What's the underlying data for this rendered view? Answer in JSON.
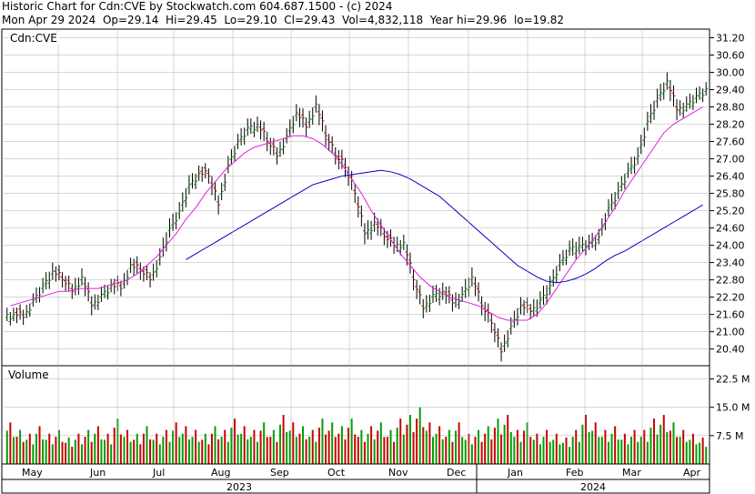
{
  "header": {
    "line1": "Historic Chart for Cdn:CVE by Stockwatch.com 604.687.1500 - (c) 2024",
    "line2": "Mon Apr 29 2024  Op=29.14  Hi=29.45  Lo=29.10  Cl=29.43  Vol=4,832,118  Year hi=29.96  lo=19.82"
  },
  "price_panel": {
    "label": "Cdn:CVE"
  },
  "volume_panel": {
    "label": "Volume"
  },
  "colors": {
    "up": "#00a000",
    "down": "#cc0000",
    "ma_short": "#e020e0",
    "ma_long": "#0000c0",
    "grid": "#b0b0b0",
    "axis": "#000000",
    "year_band": "#000000"
  },
  "chart_data": {
    "type": "line",
    "title": "Historic Chart for Cdn:CVE by Stockwatch.com 604.687.1500 - (c) 2024",
    "price_axis": {
      "ylim": [
        19.82,
        31.5
      ],
      "ticks": [
        20.4,
        21.0,
        21.6,
        22.2,
        22.8,
        23.4,
        24.0,
        24.6,
        25.2,
        25.8,
        26.4,
        27.0,
        27.6,
        28.2,
        28.8,
        29.4,
        30.0,
        30.6,
        31.2
      ],
      "tick_labels": [
        "20.40",
        "21.00",
        "21.60",
        "22.20",
        "22.80",
        "23.40",
        "24.00",
        "24.60",
        "25.20",
        "25.80",
        "26.40",
        "27.00",
        "27.60",
        "28.20",
        "28.80",
        "29.40",
        "30.00",
        "30.60",
        "31.20"
      ]
    },
    "volume_axis": {
      "ylim": [
        0,
        26
      ],
      "ticks": [
        7.5,
        15.0,
        22.5
      ],
      "tick_labels": [
        "7.5 M",
        "15.0 M",
        "22.5 M"
      ]
    },
    "x_axis": {
      "months": [
        "May",
        "Jun",
        "Jul",
        "Aug",
        "Sep",
        "Oct",
        "Nov",
        "Dec",
        "Jan",
        "Feb",
        "Mar",
        "Apr"
      ],
      "years": [
        "2023",
        "2024"
      ]
    },
    "close_weekly": [
      21.6,
      21.5,
      22.1,
      22.6,
      23.1,
      22.8,
      22.4,
      22.9,
      21.9,
      22.3,
      22.6,
      22.5,
      23.3,
      23.1,
      22.8,
      23.6,
      24.6,
      25.2,
      26.1,
      26.5,
      26.4,
      25.4,
      26.8,
      27.6,
      28.1,
      28.2,
      27.6,
      27.1,
      27.8,
      28.6,
      28.1,
      28.9,
      27.8,
      27.1,
      26.7,
      25.8,
      24.4,
      24.8,
      24.3,
      24.0,
      24.1,
      22.8,
      21.8,
      22.3,
      22.4,
      22.0,
      22.3,
      22.9,
      21.9,
      21.3,
      20.3,
      21.2,
      21.9,
      21.7,
      22.1,
      22.6,
      23.4,
      23.9,
      24.0,
      24.1,
      24.3,
      25.3,
      25.9,
      26.6,
      27.1,
      28.3,
      29.1,
      29.7,
      28.7,
      28.9,
      29.2,
      29.43
    ],
    "weekly_range": [
      0.7,
      0.8,
      0.7,
      0.8,
      0.9,
      0.8,
      0.8,
      0.9,
      1.0,
      0.8,
      0.7,
      0.8,
      0.8,
      0.9,
      0.8,
      0.9,
      1.0,
      0.9,
      1.0,
      0.8,
      0.8,
      1.0,
      0.9,
      0.8,
      0.9,
      0.8,
      1.0,
      0.9,
      0.8,
      0.9,
      1.0,
      0.9,
      1.1,
      0.9,
      1.0,
      1.0,
      1.1,
      1.0,
      0.9,
      0.9,
      0.8,
      1.1,
      1.0,
      0.9,
      0.9,
      0.9,
      0.8,
      1.0,
      1.0,
      1.0,
      1.0,
      0.9,
      0.9,
      0.8,
      0.9,
      1.0,
      0.9,
      0.8,
      0.9,
      0.8,
      0.8,
      0.9,
      0.9,
      0.8,
      0.9,
      1.0,
      1.0,
      0.9,
      1.1,
      0.8,
      0.8,
      0.7
    ],
    "ma_short": [
      21.9,
      22.0,
      22.1,
      22.2,
      22.3,
      22.4,
      22.4,
      22.5,
      22.5,
      22.5,
      22.6,
      22.7,
      22.8,
      23.0,
      23.3,
      23.6,
      24.0,
      24.4,
      24.9,
      25.3,
      25.8,
      26.2,
      26.6,
      26.9,
      27.2,
      27.4,
      27.5,
      27.6,
      27.7,
      27.8,
      27.8,
      27.7,
      27.5,
      27.2,
      26.8,
      26.3,
      25.8,
      25.2,
      24.7,
      24.2,
      23.7,
      23.3,
      22.9,
      22.6,
      22.4,
      22.2,
      22.1,
      22.0,
      21.9,
      21.7,
      21.5,
      21.4,
      21.4,
      21.4,
      21.6,
      22.0,
      22.5,
      23.0,
      23.5,
      23.9,
      24.3,
      24.8,
      25.3,
      25.9,
      26.4,
      26.9,
      27.4,
      27.9,
      28.2,
      28.4,
      28.6,
      28.8
    ],
    "ma_long": [
      null,
      null,
      null,
      null,
      null,
      null,
      null,
      null,
      null,
      null,
      null,
      null,
      null,
      null,
      null,
      null,
      null,
      null,
      null,
      null,
      null,
      null,
      null,
      null,
      null,
      null,
      null,
      null,
      null,
      null,
      null,
      null,
      null,
      null,
      null,
      null,
      null,
      null,
      null,
      null,
      null,
      null,
      null,
      null,
      null,
      null,
      null,
      null,
      null,
      null,
      null,
      null,
      null,
      null,
      null,
      null,
      null,
      null,
      null,
      null,
      null,
      null,
      null,
      null,
      null,
      null,
      null,
      null,
      null,
      null,
      null,
      null
    ],
    "ma_long_from_week": 18,
    "ma_long_values": [
      23.5,
      23.7,
      23.9,
      24.1,
      24.3,
      24.5,
      24.7,
      24.9,
      25.1,
      25.3,
      25.5,
      25.7,
      25.9,
      26.1,
      26.2,
      26.3,
      26.4,
      26.45,
      26.5,
      26.55,
      26.6,
      26.55,
      26.45,
      26.3,
      26.1,
      25.9,
      25.7,
      25.4,
      25.1,
      24.8,
      24.5,
      24.2,
      23.9,
      23.6,
      23.3,
      23.1,
      22.9,
      22.75,
      22.7,
      22.75,
      22.85,
      23.0,
      23.2,
      23.45,
      23.65,
      23.8,
      24.0,
      24.2,
      24.4,
      24.6,
      24.8,
      25.0,
      25.2,
      25.4
    ],
    "volume_weekly": [
      11,
      9,
      8,
      10,
      8,
      9,
      7,
      8,
      9,
      10,
      8,
      12,
      9,
      8,
      10,
      8,
      9,
      11,
      10,
      9,
      8,
      10,
      9,
      12,
      10,
      9,
      11,
      9,
      13,
      11,
      10,
      9,
      12,
      11,
      10,
      12,
      9,
      10,
      11,
      9,
      12,
      13,
      15,
      11,
      10,
      9,
      11,
      8,
      9,
      10,
      12,
      13,
      9,
      11,
      8,
      9,
      8,
      7,
      9,
      13,
      11,
      9,
      10,
      8,
      9,
      9,
      12,
      13,
      11,
      9,
      8,
      7
    ]
  }
}
